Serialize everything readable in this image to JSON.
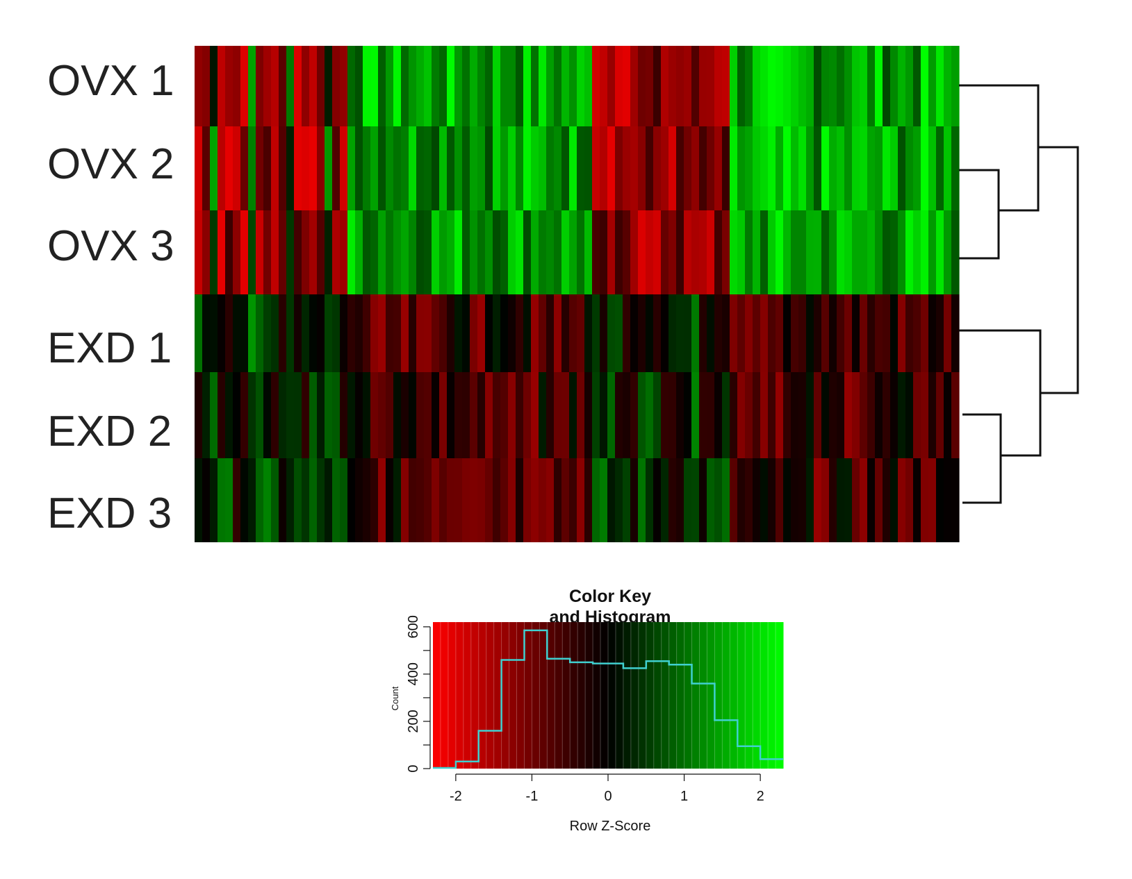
{
  "chart_data": [
    {
      "type": "heatmap",
      "title": "",
      "rows": [
        "OVX 1",
        "OVX 2",
        "OVX 3",
        "EXD 1",
        "EXD 2",
        "EXD 3"
      ],
      "column_count": 100,
      "value_range": [
        -2.5,
        2.5
      ],
      "colormap": {
        "low": "#ff0000",
        "mid": "#000000",
        "high": "#00ff00"
      },
      "row_dendrogram": {
        "merges": [
          {
            "members": [
              "OVX 2",
              "OVX 3"
            ]
          },
          {
            "members": [
              "OVX 1",
              "OVX 2",
              "OVX 3"
            ]
          },
          {
            "members": [
              "EXD 2",
              "EXD 3"
            ]
          },
          {
            "members": [
              "EXD 1",
              "EXD 2",
              "EXD 3"
            ]
          },
          {
            "members": [
              "OVX 1",
              "OVX 2",
              "OVX 3",
              "EXD 1",
              "EXD 2",
              "EXD 3"
            ]
          }
        ]
      }
    },
    {
      "type": "histogram",
      "title": "Color Key",
      "subtitle": "and Histogram",
      "xlabel": "Row Z-Score",
      "ylabel": "Count",
      "xlim": [
        -2.3,
        2.3
      ],
      "ylim": [
        0,
        620
      ],
      "x_ticks": [
        "-2",
        "-1",
        "0",
        "1",
        "2"
      ],
      "y_ticks": [
        "0",
        "200",
        "400",
        "600"
      ],
      "bin_edges": [
        -2.3,
        -2.0,
        -1.7,
        -1.4,
        -1.1,
        -0.8,
        -0.5,
        -0.2,
        0.2,
        0.5,
        0.8,
        1.1,
        1.4,
        1.7,
        2.0,
        2.3
      ],
      "counts": [
        3,
        30,
        160,
        460,
        585,
        465,
        450,
        445,
        425,
        455,
        440,
        360,
        205,
        95,
        40
      ],
      "line_color": "#40d0d0"
    }
  ]
}
